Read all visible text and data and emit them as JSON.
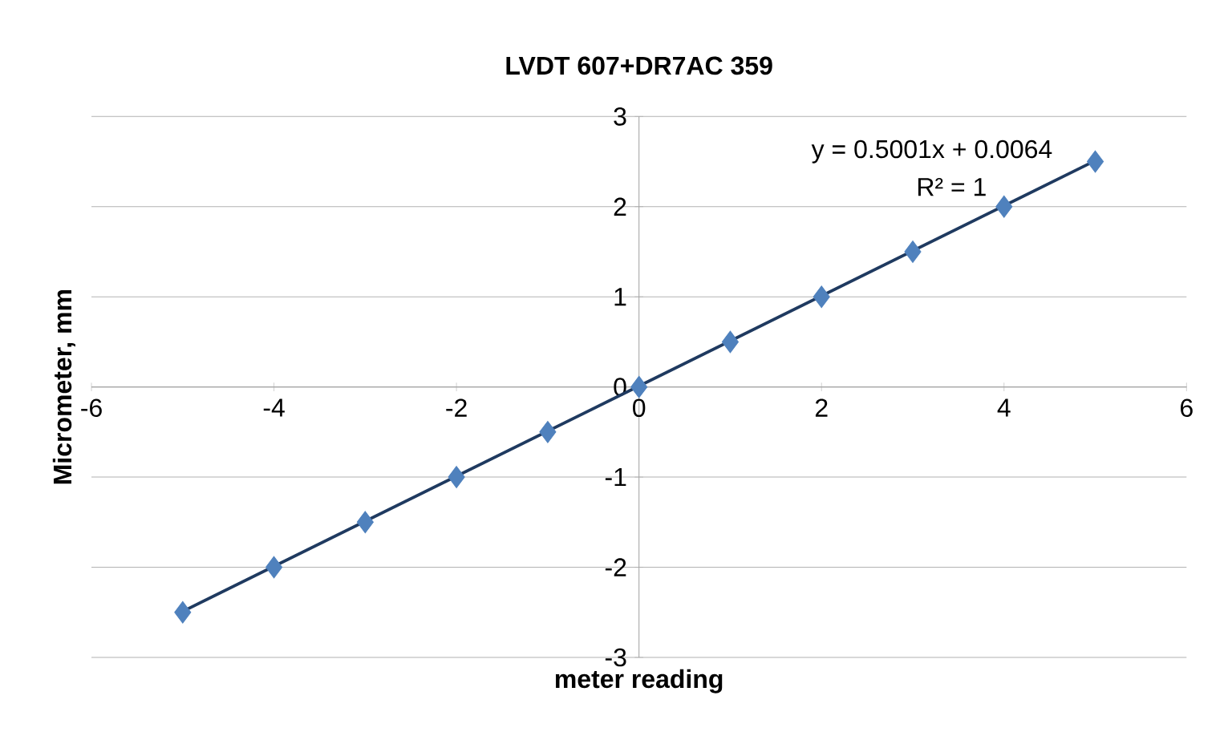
{
  "chart_data": {
    "type": "scatter",
    "title": "LVDT 607+DR7AC 359",
    "xlabel": "meter reading",
    "ylabel": "Micrometer, mm",
    "xlim": [
      -6,
      6
    ],
    "xticks": [
      -6,
      -4,
      -2,
      0,
      2,
      4,
      6
    ],
    "ylim": [
      -3,
      3
    ],
    "yticks": [
      -3,
      -2,
      -1,
      0,
      1,
      2,
      3
    ],
    "grid": "y",
    "annotations": [
      "y = 0.5001x + 0.0064",
      "R² = 1"
    ],
    "series": [
      {
        "marker": "diamond",
        "color": "#4f81bd",
        "x": [
          -5,
          -4,
          -3,
          -2,
          -1,
          0,
          1,
          2,
          3,
          4,
          5
        ],
        "values": [
          -2.5,
          -2,
          -1.5,
          -1,
          -0.5,
          0,
          0.5,
          1,
          1.5,
          2,
          2.5
        ]
      },
      {
        "type": "line",
        "line_style": "solid",
        "color": "#1f3a60",
        "x": [
          -5,
          5
        ],
        "values": [
          -2.49,
          2.51
        ]
      }
    ]
  }
}
